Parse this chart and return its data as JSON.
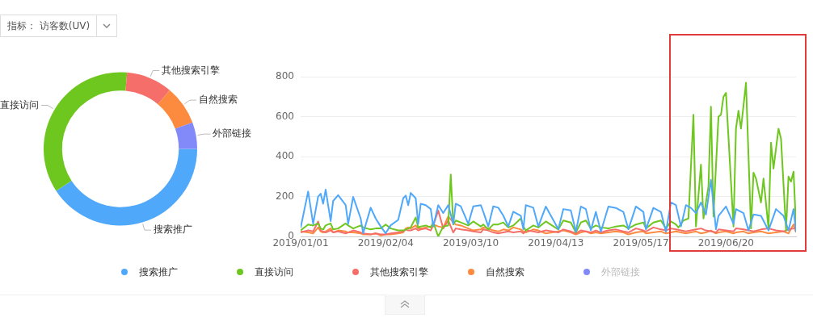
{
  "chart_data": [
    {
      "type": "donut",
      "title": "指标： 访客数(UV)",
      "categories": [
        "搜索推广",
        "直接访问",
        "其他搜索引擎",
        "自然搜索",
        "外部链接"
      ],
      "values": [
        40.8,
        35.6,
        9.7,
        8.3,
        5.6
      ],
      "colors": [
        "#4fa8f9",
        "#6ec71e",
        "#f56e6a",
        "#fc8b40",
        "#818af8"
      ]
    },
    {
      "type": "line",
      "x": [
        "2019-01-01",
        "2019-01-04",
        "2019-01-06",
        "2019-01-08",
        "2019-01-09",
        "2019-01-10",
        "2019-01-11",
        "2019-01-13",
        "2019-01-14",
        "2019-01-16",
        "2019-01-19",
        "2019-01-20",
        "2019-01-22",
        "2019-01-25",
        "2019-01-26",
        "2019-01-29",
        "2019-01-31",
        "2019-02-02",
        "2019-02-04",
        "2019-02-06",
        "2019-02-09",
        "2019-02-11",
        "2019-02-12",
        "2019-02-13",
        "2019-02-14",
        "2019-02-16",
        "2019-02-17",
        "2019-02-18",
        "2019-02-20",
        "2019-02-22",
        "2019-02-23",
        "2019-02-25",
        "2019-02-27",
        "2019-03-01",
        "2019-03-03",
        "2019-03-04",
        "2019-03-06",
        "2019-03-09",
        "2019-03-11",
        "2019-03-14",
        "2019-03-15",
        "2019-03-17",
        "2019-03-19",
        "2019-03-21",
        "2019-03-23",
        "2019-03-25",
        "2019-03-27",
        "2019-03-30",
        "2019-03-31",
        "2019-04-01",
        "2019-04-04",
        "2019-04-06",
        "2019-04-09",
        "2019-04-14",
        "2019-04-16",
        "2019-04-19",
        "2019-04-21",
        "2019-04-23",
        "2019-04-25",
        "2019-04-27",
        "2019-04-29",
        "2019-05-01",
        "2019-05-04",
        "2019-05-07",
        "2019-05-10",
        "2019-05-12",
        "2019-05-15",
        "2019-05-18",
        "2019-05-19",
        "2019-05-22",
        "2019-05-25",
        "2019-05-27",
        "2019-05-29",
        "2019-05-31",
        "2019-06-02",
        "2019-06-04",
        "2019-06-06",
        "2019-06-08",
        "2019-06-10",
        "2019-06-12",
        "2019-06-14",
        "2019-06-16",
        "2019-06-17",
        "2019-06-20",
        "2019-06-23",
        "2019-06-24",
        "2019-06-27",
        "2019-06-29",
        "2019-07-01",
        "2019-07-04",
        "2019-07-07",
        "2019-07-10",
        "2019-07-13",
        "2019-07-15",
        "2019-07-17",
        "2019-07-18"
      ],
      "series": [
        {
          "name": "搜索推广",
          "color": "#4fa8f9",
          "values": [
            43,
            225,
            63,
            200,
            214,
            164,
            235,
            77,
            178,
            207,
            157,
            63,
            198,
            90,
            16,
            144,
            90,
            50,
            16,
            56,
            83,
            191,
            205,
            157,
            218,
            191,
            63,
            164,
            157,
            137,
            50,
            157,
            117,
            157,
            63,
            164,
            151,
            63,
            151,
            157,
            124,
            50,
            151,
            144,
            104,
            50,
            124,
            104,
            36,
            157,
            144,
            50,
            150,
            36,
            137,
            130,
            23,
            150,
            137,
            30,
            123,
            23,
            150,
            143,
            123,
            36,
            150,
            123,
            36,
            143,
            123,
            23,
            170,
            157,
            50,
            157,
            143,
            117,
            170,
            110,
            284,
            36,
            103,
            150,
            63,
            137,
            117,
            30,
            110,
            103,
            30,
            137,
            103,
            30,
            137,
            23
          ]
        },
        {
          "name": "直接访问",
          "color": "#6ec71e",
          "x": [
            "2019-01-01",
            "2019-01-04",
            "2019-01-06",
            "2019-01-08",
            "2019-01-09",
            "2019-01-10",
            "2019-01-11",
            "2019-01-13",
            "2019-01-14",
            "2019-01-16",
            "2019-01-19",
            "2019-01-20",
            "2019-01-22",
            "2019-01-25",
            "2019-01-26",
            "2019-01-29",
            "2019-01-31",
            "2019-02-02",
            "2019-02-04",
            "2019-02-06",
            "2019-02-09",
            "2019-02-11",
            "2019-02-12",
            "2019-02-13",
            "2019-02-14",
            "2019-02-16",
            "2019-02-17",
            "2019-02-18",
            "2019-02-20",
            "2019-02-22",
            "2019-02-23",
            "2019-02-25",
            "2019-02-27",
            "2019-03-01",
            "2019-03-02",
            "2019-03-03",
            "2019-03-04",
            "2019-03-06",
            "2019-03-09",
            "2019-03-11",
            "2019-03-14",
            "2019-03-15",
            "2019-03-17",
            "2019-03-19",
            "2019-03-21",
            "2019-03-23",
            "2019-03-25",
            "2019-03-27",
            "2019-03-30",
            "2019-03-31",
            "2019-04-01",
            "2019-04-04",
            "2019-04-06",
            "2019-04-09",
            "2019-04-14",
            "2019-04-16",
            "2019-04-19",
            "2019-04-21",
            "2019-04-23",
            "2019-04-25",
            "2019-04-27",
            "2019-04-29",
            "2019-05-01",
            "2019-05-04",
            "2019-05-07",
            "2019-05-10",
            "2019-05-12",
            "2019-05-15",
            "2019-05-18",
            "2019-05-19",
            "2019-05-22",
            "2019-05-25",
            "2019-05-27",
            "2019-05-29",
            "2019-05-31",
            "2019-06-01",
            "2019-06-03",
            "2019-06-05",
            "2019-06-07",
            "2019-06-08",
            "2019-06-10",
            "2019-06-11",
            "2019-06-13",
            "2019-06-14",
            "2019-06-15",
            "2019-06-17",
            "2019-06-18",
            "2019-06-19",
            "2019-06-20",
            "2019-06-23",
            "2019-06-24",
            "2019-06-25",
            "2019-06-26",
            "2019-06-28",
            "2019-06-30",
            "2019-07-01",
            "2019-07-02",
            "2019-07-04",
            "2019-07-05",
            "2019-07-07",
            "2019-07-08",
            "2019-07-09",
            "2019-07-11",
            "2019-07-12",
            "2019-07-14",
            "2019-07-15",
            "2019-07-16",
            "2019-07-17",
            "2019-07-18"
          ],
          "values": [
            30,
            60,
            55,
            65,
            40,
            35,
            55,
            65,
            35,
            40,
            65,
            55,
            40,
            55,
            45,
            35,
            40,
            40,
            60,
            40,
            30,
            30,
            35,
            40,
            45,
            95,
            45,
            50,
            55,
            45,
            70,
            0,
            50,
            55,
            310,
            60,
            80,
            70,
            55,
            75,
            50,
            60,
            35,
            60,
            60,
            70,
            45,
            55,
            90,
            50,
            30,
            55,
            45,
            75,
            35,
            80,
            70,
            20,
            70,
            80,
            40,
            55,
            45,
            40,
            50,
            55,
            40,
            60,
            70,
            40,
            70,
            80,
            40,
            75,
            60,
            45,
            80,
            90,
            610,
            50,
            360,
            90,
            250,
            650,
            100,
            600,
            610,
            700,
            720,
            50,
            540,
            630,
            540,
            770,
            40,
            320,
            290,
            170,
            290,
            40,
            470,
            340,
            540,
            490,
            30,
            300,
            275,
            325,
            50
          ]
        },
        {
          "name": "其他搜索引擎",
          "color": "#f56e6a",
          "values": [
            20,
            30,
            25,
            75,
            30,
            25,
            20,
            30,
            20,
            25,
            15,
            20,
            30,
            20,
            15,
            10,
            15,
            10,
            10,
            15,
            20,
            25,
            35,
            30,
            30,
            40,
            30,
            35,
            40,
            30,
            55,
            130,
            40,
            80,
            20,
            40,
            35,
            30,
            25,
            20,
            35,
            30,
            20,
            15,
            20,
            25,
            20,
            25,
            15,
            30,
            25,
            20,
            30,
            20,
            35,
            25,
            15,
            30,
            25,
            20,
            30,
            20,
            30,
            35,
            25,
            20,
            40,
            30,
            25,
            45,
            35,
            30,
            40,
            35,
            30,
            25,
            30,
            35,
            40,
            30,
            25,
            20,
            35,
            30,
            25,
            40,
            35,
            30,
            25,
            35,
            40,
            30,
            25,
            35,
            40,
            45
          ]
        },
        {
          "name": "自然搜索",
          "color": "#fc8b40",
          "values": [
            25,
            20,
            15,
            45,
            25,
            20,
            25,
            40,
            20,
            30,
            25,
            20,
            20,
            15,
            10,
            10,
            15,
            5,
            10,
            10,
            15,
            20,
            40,
            45,
            40,
            55,
            40,
            40,
            45,
            50,
            60,
            50,
            45,
            100,
            70,
            60,
            55,
            40,
            30,
            35,
            45,
            40,
            30,
            25,
            35,
            30,
            45,
            35,
            25,
            20,
            35,
            30,
            15,
            25,
            30,
            20,
            10,
            20,
            25,
            15,
            20,
            15,
            20,
            25,
            20,
            10,
            20,
            25,
            15,
            20,
            25,
            15,
            20,
            25,
            20,
            15,
            20,
            25,
            15,
            20,
            30,
            15,
            20,
            25,
            15,
            20,
            25,
            15,
            20,
            25,
            15,
            20,
            25,
            15,
            60,
            20
          ]
        },
        {
          "name": "外部链接",
          "color": "#818af8",
          "values": [
            null,
            null,
            null,
            null,
            null,
            null,
            null,
            null,
            null,
            null,
            null,
            null,
            null,
            null,
            null,
            null,
            null,
            null,
            null,
            null,
            null,
            null,
            null,
            null,
            null,
            null,
            null,
            null,
            null,
            null,
            null,
            null,
            null,
            null,
            null,
            null,
            null,
            null,
            null,
            null,
            null,
            null,
            null,
            null,
            null,
            null,
            null,
            null,
            null,
            null,
            null,
            null,
            null,
            null,
            null,
            null,
            null,
            null,
            null,
            null,
            null,
            null,
            null,
            null,
            null,
            null,
            null,
            null,
            null,
            null,
            null,
            null,
            null,
            null,
            null,
            null,
            null,
            null,
            null,
            null,
            null,
            null,
            null,
            null,
            null,
            null,
            null,
            null,
            null,
            null,
            null,
            null,
            null,
            null,
            null,
            null
          ]
        }
      ],
      "xlim": [
        "2019-01-01",
        "2019-07-18"
      ],
      "xticks": [
        {
          "value": "2019-01-01",
          "label": "2019/01/01"
        },
        {
          "value": "2019-02-04",
          "label": "2019/02/04"
        },
        {
          "value": "2019-03-10",
          "label": "2019/03/10"
        },
        {
          "value": "2019-04-13",
          "label": "2019/04/13"
        },
        {
          "value": "2019-05-17",
          "label": "2019/05/17"
        },
        {
          "value": "2019-06-20",
          "label": "2019/06/20"
        }
      ],
      "ylim": [
        0,
        800
      ],
      "yticks": [
        0,
        200,
        400,
        600,
        800
      ],
      "grid": "y",
      "legend": "bottom"
    }
  ]
}
